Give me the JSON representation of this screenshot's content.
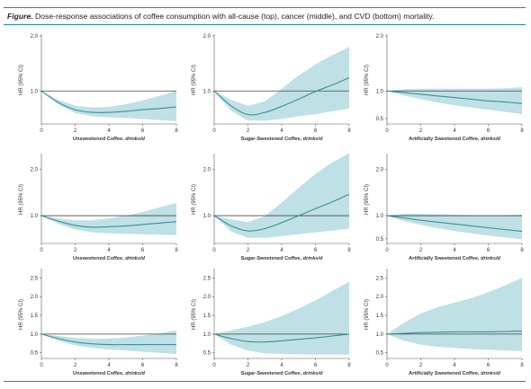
{
  "caption": {
    "label": "Figure.",
    "text": "Dose-response associations of coffee consumption with all-cause (top), cancer (middle), and CVD (bottom) mortality."
  },
  "colors": {
    "band": "#bfe0e4",
    "line": "#3a8f9a",
    "reference": "#444444",
    "rule": "#1e8aa6"
  },
  "chart_data": [
    {
      "type": "line",
      "row": "all-cause",
      "col": 0,
      "ylabel": "HR (95% CI)",
      "xlabel": "Unsweetened Coffee,",
      "xlabel_unit": "drinks/d",
      "xlim": [
        0,
        8
      ],
      "ylim": [
        0.4,
        2.0
      ],
      "yticks": [
        1.0,
        2.0
      ],
      "ytick_labels": [
        "1.0",
        "2.0"
      ],
      "xticks": [
        0,
        2,
        4,
        6,
        8
      ],
      "reference": 1.0,
      "x": [
        0,
        1,
        2,
        3,
        4,
        5,
        6,
        7,
        8
      ],
      "hr": [
        1.0,
        0.79,
        0.66,
        0.61,
        0.61,
        0.63,
        0.66,
        0.68,
        0.71
      ],
      "lower": [
        1.0,
        0.76,
        0.6,
        0.54,
        0.52,
        0.51,
        0.49,
        0.47,
        0.45
      ],
      "upper": [
        1.0,
        0.84,
        0.73,
        0.7,
        0.71,
        0.76,
        0.83,
        0.91,
        1.0
      ]
    },
    {
      "type": "line",
      "row": "all-cause",
      "col": 1,
      "ylabel": "HR (95% CI)",
      "xlabel": "Sugar-Sweetened Coffee,",
      "xlabel_unit": "drinks/d",
      "xlim": [
        0,
        8
      ],
      "ylim": [
        0.4,
        2.0
      ],
      "yticks": [
        1.0,
        2.0
      ],
      "ytick_labels": [
        "1.0",
        "2.0"
      ],
      "xticks": [
        0,
        2,
        4,
        6,
        8
      ],
      "reference": 1.0,
      "x": [
        0,
        1,
        2,
        3,
        4,
        5,
        6,
        7,
        8
      ],
      "hr": [
        1.0,
        0.73,
        0.57,
        0.61,
        0.72,
        0.85,
        0.99,
        1.11,
        1.24
      ],
      "lower": [
        1.0,
        0.64,
        0.46,
        0.46,
        0.49,
        0.54,
        0.58,
        0.63,
        0.68
      ],
      "upper": [
        1.0,
        0.84,
        0.73,
        0.81,
        1.04,
        1.28,
        1.48,
        1.65,
        1.8
      ]
    },
    {
      "type": "line",
      "row": "all-cause",
      "col": 2,
      "ylabel": "HR (95% CI)",
      "xlabel": "Artificially Sweetened Coffee,",
      "xlabel_unit": "drinks/d",
      "xlim": [
        0,
        8
      ],
      "ylim": [
        0.4,
        2.0
      ],
      "yticks": [
        0.5,
        1.0,
        2.0
      ],
      "ytick_labels": [
        "0.5",
        "1.0",
        "2.0"
      ],
      "xticks": [
        0,
        2,
        4,
        6,
        8
      ],
      "reference": 1.0,
      "x": [
        0,
        1,
        2,
        3,
        4,
        5,
        6,
        7,
        8
      ],
      "hr": [
        1.0,
        0.97,
        0.94,
        0.91,
        0.88,
        0.85,
        0.82,
        0.8,
        0.77
      ],
      "lower": [
        1.0,
        0.92,
        0.85,
        0.79,
        0.74,
        0.7,
        0.66,
        0.62,
        0.58
      ],
      "upper": [
        1.0,
        1.03,
        1.04,
        1.04,
        1.04,
        1.04,
        1.04,
        1.05,
        1.07
      ]
    },
    {
      "type": "line",
      "row": "cancer",
      "col": 0,
      "ylabel": "HR (95% CI)",
      "xlabel": "Unsweetened Coffee,",
      "xlabel_unit": "drinks/d",
      "xlim": [
        0,
        8
      ],
      "ylim": [
        0.4,
        2.3
      ],
      "yticks": [
        1.0,
        2.0
      ],
      "ytick_labels": [
        "1.0",
        "2.0"
      ],
      "xticks": [
        0,
        2,
        4,
        6,
        8
      ],
      "reference": 1.0,
      "x": [
        0,
        1,
        2,
        3,
        4,
        5,
        6,
        7,
        8
      ],
      "hr": [
        1.0,
        0.88,
        0.79,
        0.75,
        0.76,
        0.78,
        0.81,
        0.84,
        0.87
      ],
      "lower": [
        1.0,
        0.82,
        0.7,
        0.64,
        0.62,
        0.61,
        0.6,
        0.59,
        0.58
      ],
      "upper": [
        1.0,
        0.94,
        0.9,
        0.9,
        0.94,
        1.0,
        1.08,
        1.18,
        1.28
      ]
    },
    {
      "type": "line",
      "row": "cancer",
      "col": 1,
      "ylabel": "HR (95% CI)",
      "xlabel": "Sugar-Sweetened Coffee,",
      "xlabel_unit": "drinks/d",
      "xlim": [
        0,
        8
      ],
      "ylim": [
        0.4,
        2.3
      ],
      "yticks": [
        1.0,
        2.0
      ],
      "ytick_labels": [
        "1.0",
        "2.0"
      ],
      "xticks": [
        0,
        2,
        4,
        6,
        8
      ],
      "reference": 1.0,
      "x": [
        0,
        1,
        2,
        3,
        4,
        5,
        6,
        7,
        8
      ],
      "hr": [
        1.0,
        0.78,
        0.67,
        0.72,
        0.85,
        1.0,
        1.15,
        1.3,
        1.46
      ],
      "lower": [
        1.0,
        0.66,
        0.52,
        0.52,
        0.56,
        0.6,
        0.64,
        0.68,
        0.72
      ],
      "upper": [
        1.0,
        0.92,
        0.86,
        0.99,
        1.28,
        1.6,
        1.9,
        2.15,
        2.35
      ]
    },
    {
      "type": "line",
      "row": "cancer",
      "col": 2,
      "ylabel": "HR (95% CI)",
      "xlabel": "Artificially Sweetened Coffee,",
      "xlabel_unit": "drinks/d",
      "xlim": [
        0,
        8
      ],
      "ylim": [
        0.4,
        2.3
      ],
      "yticks": [
        0.5,
        1.0,
        2.0
      ],
      "ytick_labels": [
        "0.5",
        "1.0",
        "2.0"
      ],
      "xticks": [
        0,
        2,
        4,
        6,
        8
      ],
      "reference": 1.0,
      "x": [
        0,
        1,
        2,
        3,
        4,
        5,
        6,
        7,
        8
      ],
      "hr": [
        1.0,
        0.95,
        0.9,
        0.86,
        0.82,
        0.78,
        0.74,
        0.7,
        0.66
      ],
      "lower": [
        1.0,
        0.88,
        0.8,
        0.73,
        0.67,
        0.62,
        0.57,
        0.53,
        0.49
      ],
      "upper": [
        1.0,
        1.04,
        1.04,
        1.03,
        1.02,
        1.01,
        1.01,
        1.01,
        1.02
      ]
    },
    {
      "type": "line",
      "row": "CVD",
      "col": 0,
      "ylabel": "HR (95% CI)",
      "xlabel": "Unsweetened Coffee,",
      "xlabel_unit": "drinks/d",
      "xlim": [
        0,
        8
      ],
      "ylim": [
        0.35,
        2.7
      ],
      "yticks": [
        0.5,
        1.0,
        1.5,
        2.0,
        2.5
      ],
      "ytick_labels": [
        "0.5",
        "1.0",
        "1.5",
        "2.0",
        "2.5"
      ],
      "xticks": [
        0,
        2,
        4,
        6,
        8
      ],
      "reference": 1.0,
      "x": [
        0,
        1,
        2,
        3,
        4,
        5,
        6,
        7,
        8
      ],
      "hr": [
        1.0,
        0.88,
        0.79,
        0.74,
        0.72,
        0.72,
        0.72,
        0.72,
        0.72
      ],
      "lower": [
        1.0,
        0.82,
        0.7,
        0.63,
        0.59,
        0.56,
        0.53,
        0.5,
        0.47
      ],
      "upper": [
        1.0,
        0.95,
        0.9,
        0.88,
        0.88,
        0.91,
        0.96,
        1.02,
        1.1
      ]
    },
    {
      "type": "line",
      "row": "CVD",
      "col": 1,
      "ylabel": "HR (95% CI)",
      "xlabel": "Sugar-Sweetened Coffee,",
      "xlabel_unit": "drinks/d",
      "xlim": [
        0,
        8
      ],
      "ylim": [
        0.35,
        2.7
      ],
      "yticks": [
        0.5,
        1.0,
        1.5,
        2.0,
        2.5
      ],
      "ytick_labels": [
        "0.5",
        "1.0",
        "1.5",
        "2.0",
        "2.5"
      ],
      "xticks": [
        0,
        2,
        4,
        6,
        8
      ],
      "reference": 1.0,
      "x": [
        0,
        1,
        2,
        3,
        4,
        5,
        6,
        7,
        8
      ],
      "hr": [
        1.0,
        0.88,
        0.8,
        0.79,
        0.82,
        0.86,
        0.9,
        0.95,
        1.0
      ],
      "lower": [
        1.0,
        0.72,
        0.56,
        0.49,
        0.47,
        0.46,
        0.45,
        0.45,
        0.45
      ],
      "upper": [
        1.0,
        1.1,
        1.2,
        1.32,
        1.48,
        1.68,
        1.9,
        2.15,
        2.4
      ]
    },
    {
      "type": "line",
      "row": "CVD",
      "col": 2,
      "ylabel": "HR (95% CI)",
      "xlabel": "Artificially Sweetened Coffee,",
      "xlabel_unit": "drinks/d",
      "xlim": [
        0,
        8
      ],
      "ylim": [
        0.35,
        2.7
      ],
      "yticks": [
        0.5,
        1.0,
        1.5,
        2.0,
        2.5
      ],
      "ytick_labels": [
        "0.5",
        "1.0",
        "1.5",
        "2.0",
        "2.5"
      ],
      "xticks": [
        0,
        2,
        4,
        6,
        8
      ],
      "reference": 1.0,
      "x": [
        0,
        1,
        2,
        3,
        4,
        5,
        6,
        7,
        8
      ],
      "hr": [
        1.0,
        1.02,
        1.04,
        1.05,
        1.06,
        1.06,
        1.06,
        1.07,
        1.08
      ],
      "lower": [
        1.0,
        0.82,
        0.72,
        0.66,
        0.63,
        0.6,
        0.58,
        0.56,
        0.55
      ],
      "upper": [
        1.0,
        1.3,
        1.55,
        1.72,
        1.84,
        1.96,
        2.12,
        2.3,
        2.5
      ]
    }
  ]
}
